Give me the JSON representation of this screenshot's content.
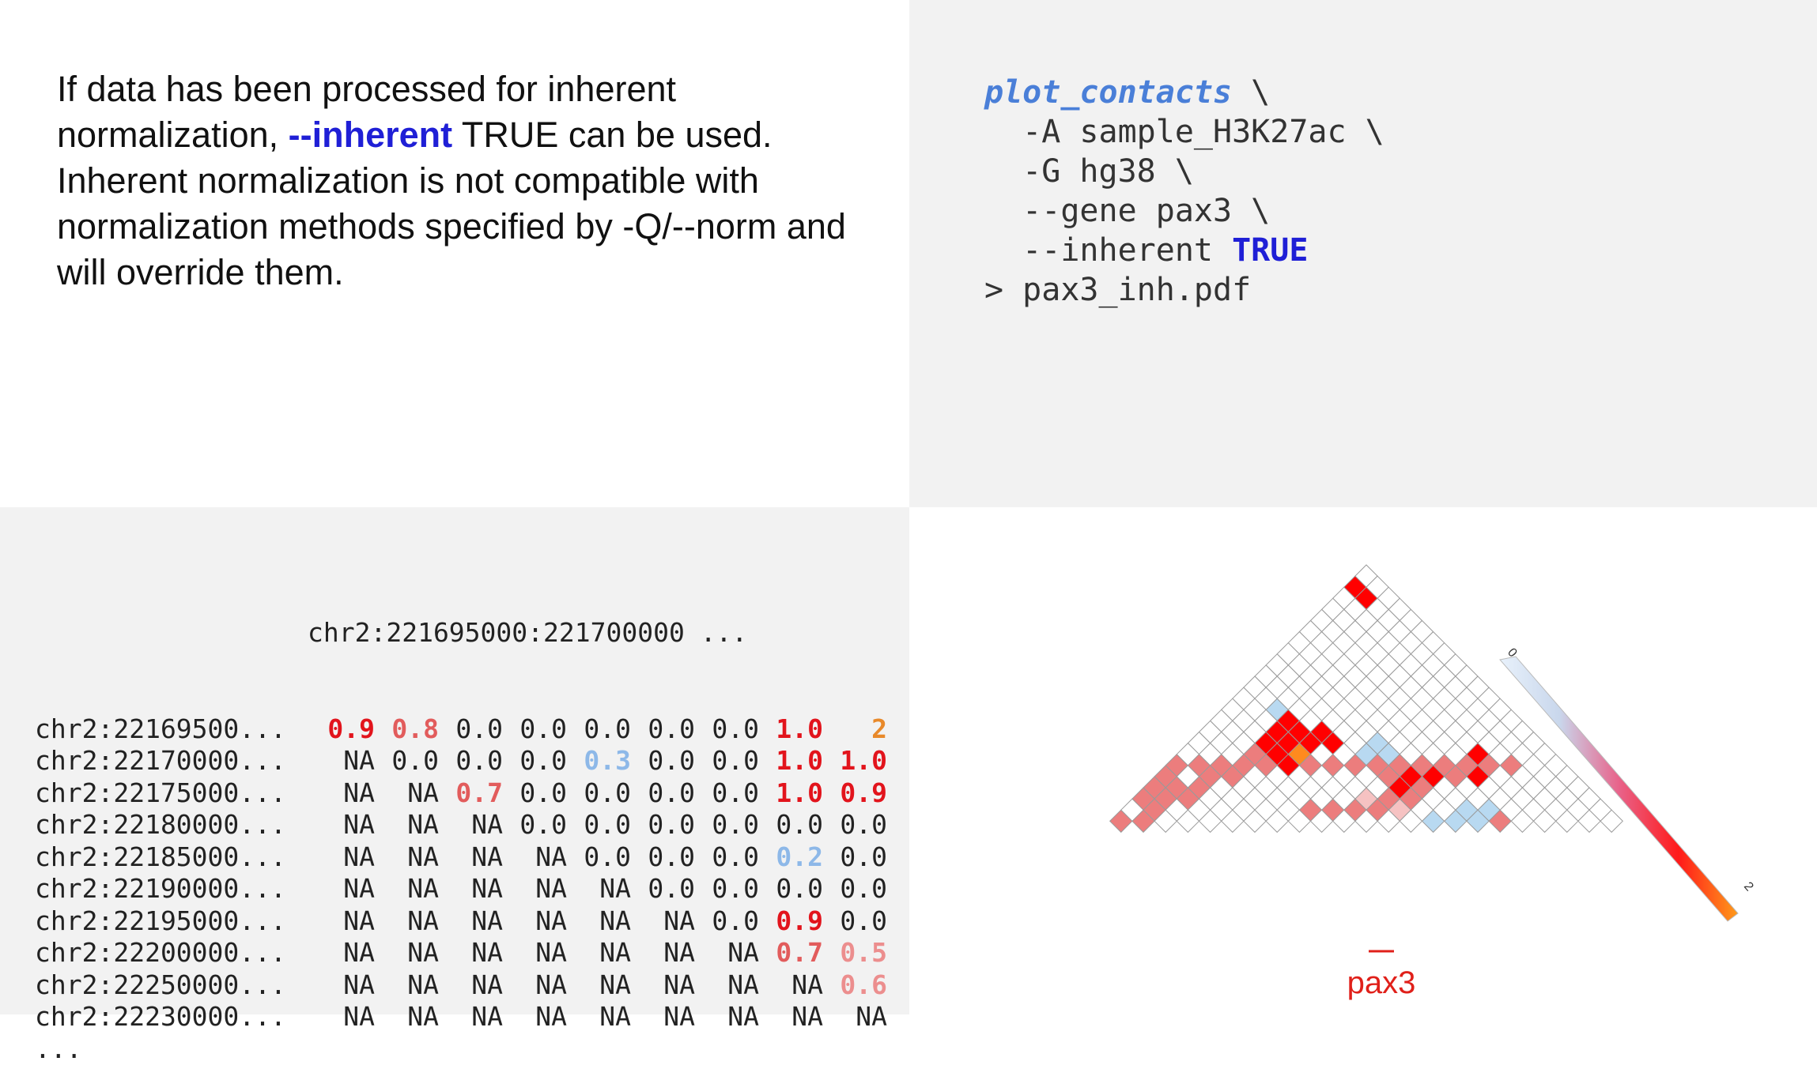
{
  "description": {
    "pre": "If data has been processed for inherent normalization, ",
    "flag": "--inherent",
    "post": " TRUE can be used. Inherent normalization is not compatible with normalization methods specified by -Q/--norm and will override them."
  },
  "command": {
    "name": "plot_contacts",
    "cont": " \\",
    "lines": [
      "  -A sample_H3K27ac \\",
      "  -G hg38 \\",
      "  --gene pax3 \\"
    ],
    "inherent_arg": "  --inherent ",
    "inherent_value": "TRUE",
    "output_line": "> pax3_inh.pdf"
  },
  "matrix": {
    "column_header": "chr2:221695000:221700000 ...",
    "rows": [
      {
        "label": "chr2:22169500...",
        "cells": [
          {
            "v": "0.9",
            "c": "red"
          },
          {
            "v": "0.8",
            "c": "red2"
          },
          {
            "v": "0.0"
          },
          {
            "v": "0.0"
          },
          {
            "v": "0.0"
          },
          {
            "v": "0.0"
          },
          {
            "v": "0.0"
          },
          {
            "v": "1.0",
            "c": "red"
          },
          {
            "v": "2",
            "c": "orange"
          }
        ]
      },
      {
        "label": "chr2:22170000...",
        "cells": [
          {
            "v": "NA"
          },
          {
            "v": "0.0"
          },
          {
            "v": "0.0"
          },
          {
            "v": "0.0"
          },
          {
            "v": "0.3",
            "c": "blue"
          },
          {
            "v": "0.0"
          },
          {
            "v": "0.0"
          },
          {
            "v": "1.0",
            "c": "red"
          },
          {
            "v": "1.0",
            "c": "red"
          }
        ]
      },
      {
        "label": "chr2:22175000...",
        "cells": [
          {
            "v": "NA"
          },
          {
            "v": "NA"
          },
          {
            "v": "0.7",
            "c": "red2"
          },
          {
            "v": "0.0"
          },
          {
            "v": "0.0"
          },
          {
            "v": "0.0"
          },
          {
            "v": "0.0"
          },
          {
            "v": "1.0",
            "c": "red"
          },
          {
            "v": "0.9",
            "c": "red"
          }
        ]
      },
      {
        "label": "chr2:22180000...",
        "cells": [
          {
            "v": "NA"
          },
          {
            "v": "NA"
          },
          {
            "v": "NA"
          },
          {
            "v": "0.0"
          },
          {
            "v": "0.0"
          },
          {
            "v": "0.0"
          },
          {
            "v": "0.0"
          },
          {
            "v": "0.0"
          },
          {
            "v": "0.0"
          }
        ]
      },
      {
        "label": "chr2:22185000...",
        "cells": [
          {
            "v": "NA"
          },
          {
            "v": "NA"
          },
          {
            "v": "NA"
          },
          {
            "v": "NA"
          },
          {
            "v": "0.0"
          },
          {
            "v": "0.0"
          },
          {
            "v": "0.0"
          },
          {
            "v": "0.2",
            "c": "blue"
          },
          {
            "v": "0.0"
          }
        ]
      },
      {
        "label": "chr2:22190000...",
        "cells": [
          {
            "v": "NA"
          },
          {
            "v": "NA"
          },
          {
            "v": "NA"
          },
          {
            "v": "NA"
          },
          {
            "v": "NA"
          },
          {
            "v": "0.0"
          },
          {
            "v": "0.0"
          },
          {
            "v": "0.0"
          },
          {
            "v": "0.0"
          }
        ]
      },
      {
        "label": "chr2:22195000...",
        "cells": [
          {
            "v": "NA"
          },
          {
            "v": "NA"
          },
          {
            "v": "NA"
          },
          {
            "v": "NA"
          },
          {
            "v": "NA"
          },
          {
            "v": "NA"
          },
          {
            "v": "0.0"
          },
          {
            "v": "0.9",
            "c": "red"
          },
          {
            "v": "0.0"
          }
        ]
      },
      {
        "label": "chr2:22200000...",
        "cells": [
          {
            "v": "NA"
          },
          {
            "v": "NA"
          },
          {
            "v": "NA"
          },
          {
            "v": "NA"
          },
          {
            "v": "NA"
          },
          {
            "v": "NA"
          },
          {
            "v": "NA"
          },
          {
            "v": "0.7",
            "c": "red2"
          },
          {
            "v": "0.5",
            "c": "pink"
          }
        ]
      },
      {
        "label": "chr2:22250000...",
        "cells": [
          {
            "v": "NA"
          },
          {
            "v": "NA"
          },
          {
            "v": "NA"
          },
          {
            "v": "NA"
          },
          {
            "v": "NA"
          },
          {
            "v": "NA"
          },
          {
            "v": "NA"
          },
          {
            "v": "NA"
          },
          {
            "v": "0.6",
            "c": "pink"
          }
        ]
      },
      {
        "label": "chr2:22230000...",
        "cells": [
          {
            "v": "NA"
          },
          {
            "v": "NA"
          },
          {
            "v": "NA"
          },
          {
            "v": "NA"
          },
          {
            "v": "NA"
          },
          {
            "v": "NA"
          },
          {
            "v": "NA"
          },
          {
            "v": "NA"
          },
          {
            "v": "NA"
          }
        ]
      }
    ],
    "ellipsis": "..."
  },
  "heatmap": {
    "gene_label": "pax3",
    "legend_min": "0",
    "legend_max": "2",
    "colors": {
      "red": "#ff0000",
      "salmon": "#ec7d7d",
      "light_pink": "#f6c2c2",
      "orange": "#ff8a1e",
      "light_blue": "#b8d9f1",
      "grid": "#9a9a9a",
      "gene": "#e0201a"
    }
  }
}
